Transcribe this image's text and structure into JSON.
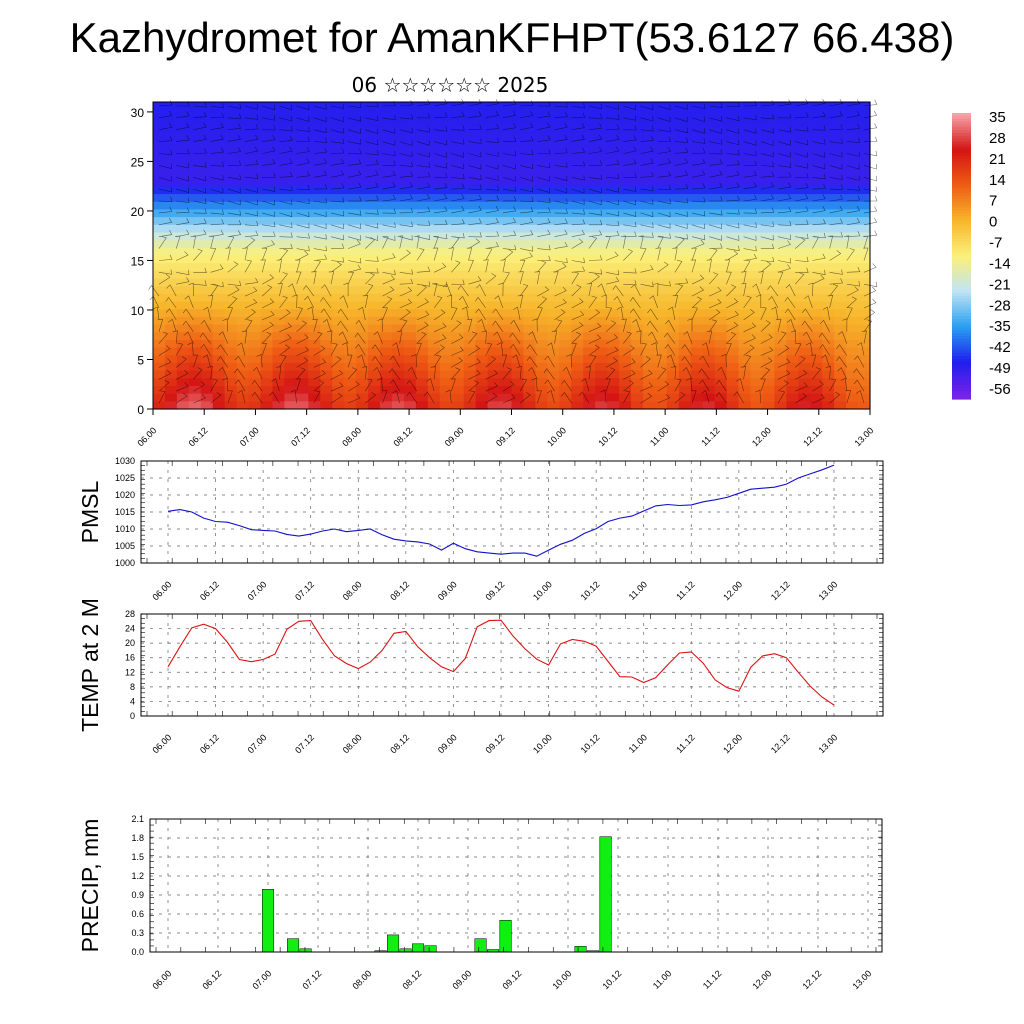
{
  "title": "Kazhydromet for AmanKFHPT(53.6127 66.438)",
  "subtitle": "06 ☆☆☆☆☆☆ 2025",
  "time_labels": [
    "06.00",
    "06.12",
    "07.00",
    "07.12",
    "08.00",
    "08.12",
    "09.00",
    "09.12",
    "10.00",
    "10.12",
    "11.00",
    "11.12",
    "12.00",
    "12.12",
    "13.00"
  ],
  "chart_data": [
    {
      "type": "heatmap",
      "name": "temperature-wind-cross-section",
      "yticks": [
        0,
        5,
        10,
        15,
        20,
        25,
        30
      ],
      "ylim": [
        0,
        31
      ],
      "colorbar": {
        "labels": [
          "35",
          "28",
          "21",
          "14",
          "7",
          "0",
          "-7",
          "-14",
          "-21",
          "-28",
          "-35",
          "-42",
          "-49",
          "-56"
        ],
        "range": [
          -63,
          39
        ],
        "colors": [
          "#7a22e8",
          "#1f1fee",
          "#2aa0f0",
          "#c0e4f4",
          "#fbf07a",
          "#f7b62b",
          "#ef5c14",
          "#d41414",
          "#f5a3a8"
        ]
      }
    },
    {
      "type": "line",
      "name": "pmsl",
      "ylabel": "PMSL",
      "color": "#1111cc",
      "ylim": [
        1000,
        1030
      ],
      "yticks": [
        1000,
        1005,
        1010,
        1015,
        1020,
        1025,
        1030
      ],
      "x": [
        0,
        3,
        6,
        9,
        12,
        15,
        18,
        21,
        24,
        27,
        30,
        33,
        36,
        39,
        42,
        45,
        48,
        51,
        54,
        57,
        60,
        63,
        66,
        69,
        72,
        75,
        78,
        81,
        84,
        87,
        90,
        93,
        96,
        99,
        102,
        105,
        108,
        111,
        114,
        117,
        120,
        123,
        126,
        129,
        132,
        135,
        138,
        141,
        144,
        147,
        150,
        153,
        156,
        159,
        162,
        165,
        168
      ],
      "values": [
        1015.2,
        1015.7,
        1015.0,
        1013.2,
        1012.2,
        1012.0,
        1011.0,
        1009.8,
        1009.6,
        1009.4,
        1008.4,
        1007.9,
        1008.5,
        1009.4,
        1010.0,
        1009.2,
        1009.6,
        1010.0,
        1008.3,
        1007.0,
        1006.5,
        1006.2,
        1005.6,
        1003.8,
        1005.8,
        1004.2,
        1003.3,
        1002.9,
        1002.6,
        1002.9,
        1002.9,
        1002.0,
        1003.8,
        1005.5,
        1006.7,
        1008.7,
        1010.1,
        1012.2,
        1013.2,
        1013.8,
        1015.3,
        1016.8,
        1017.2,
        1016.9,
        1017.1,
        1018.0,
        1018.6,
        1019.3,
        1020.5,
        1021.7,
        1022.0,
        1022.3,
        1023.2,
        1025.0,
        1026.2,
        1027.4,
        1028.8
      ]
    },
    {
      "type": "line",
      "name": "temp-2m",
      "ylabel": "TEMP at 2 M",
      "color": "#dd1111",
      "ylim": [
        0,
        28
      ],
      "yticks": [
        0,
        4,
        8,
        12,
        16,
        20,
        24,
        28
      ],
      "x": [
        0,
        3,
        6,
        9,
        12,
        15,
        18,
        21,
        24,
        27,
        30,
        33,
        36,
        39,
        42,
        45,
        48,
        51,
        54,
        57,
        60,
        63,
        66,
        69,
        72,
        75,
        78,
        81,
        84,
        87,
        90,
        93,
        96,
        99,
        102,
        105,
        108,
        111,
        114,
        117,
        120,
        123,
        126,
        129,
        132,
        135,
        138,
        141,
        144,
        147,
        150,
        153,
        156,
        159,
        162,
        165,
        168
      ],
      "values": [
        13.5,
        19.0,
        24.2,
        25.2,
        24.0,
        20.2,
        15.5,
        14.9,
        15.5,
        17.0,
        23.8,
        26.0,
        26.2,
        21.0,
        16.5,
        14.4,
        13.0,
        14.8,
        18.0,
        22.7,
        23.2,
        19.0,
        16.0,
        13.5,
        12.2,
        15.8,
        24.5,
        26.2,
        26.3,
        22.0,
        18.5,
        15.6,
        14.0,
        19.8,
        21.0,
        20.5,
        19.2,
        15.0,
        10.8,
        10.7,
        9.2,
        10.5,
        14.0,
        17.3,
        17.6,
        14.5,
        9.9,
        7.8,
        6.8,
        13.4,
        16.5,
        17.1,
        16.0,
        12.0,
        8.2,
        5.2,
        3.0
      ]
    },
    {
      "type": "bar",
      "name": "precip",
      "ylabel": "PRECIP, mm",
      "color": "#11ee11",
      "ylim": [
        0,
        2.1
      ],
      "yticks": [
        "0.0",
        "0.3",
        "0.6",
        "0.9",
        "1.2",
        "1.5",
        "1.8",
        "2.1"
      ],
      "x": [
        0,
        3,
        6,
        9,
        12,
        15,
        18,
        21,
        24,
        27,
        30,
        33,
        36,
        39,
        42,
        45,
        48,
        51,
        54,
        57,
        60,
        63,
        66,
        69,
        72,
        75,
        78,
        81,
        84,
        87,
        90,
        93,
        96,
        99,
        102,
        105,
        108,
        111,
        114,
        117,
        120,
        123,
        126,
        129,
        132,
        135,
        138,
        141,
        144,
        147,
        150,
        153,
        156,
        159,
        162,
        165,
        168
      ],
      "values": [
        0,
        0,
        0,
        0,
        0,
        0,
        0,
        0,
        0.99,
        0,
        0.21,
        0.05,
        0,
        0,
        0,
        0,
        0,
        0.02,
        0.27,
        0.05,
        0.13,
        0.1,
        0,
        0,
        0,
        0.21,
        0.04,
        0.5,
        0,
        0,
        0,
        0,
        0,
        0.09,
        0.02,
        1.82,
        0,
        0,
        0,
        0,
        0,
        0,
        0,
        0,
        0,
        0,
        0,
        0,
        0,
        0,
        0,
        0,
        0,
        0,
        0,
        0,
        0
      ]
    }
  ]
}
